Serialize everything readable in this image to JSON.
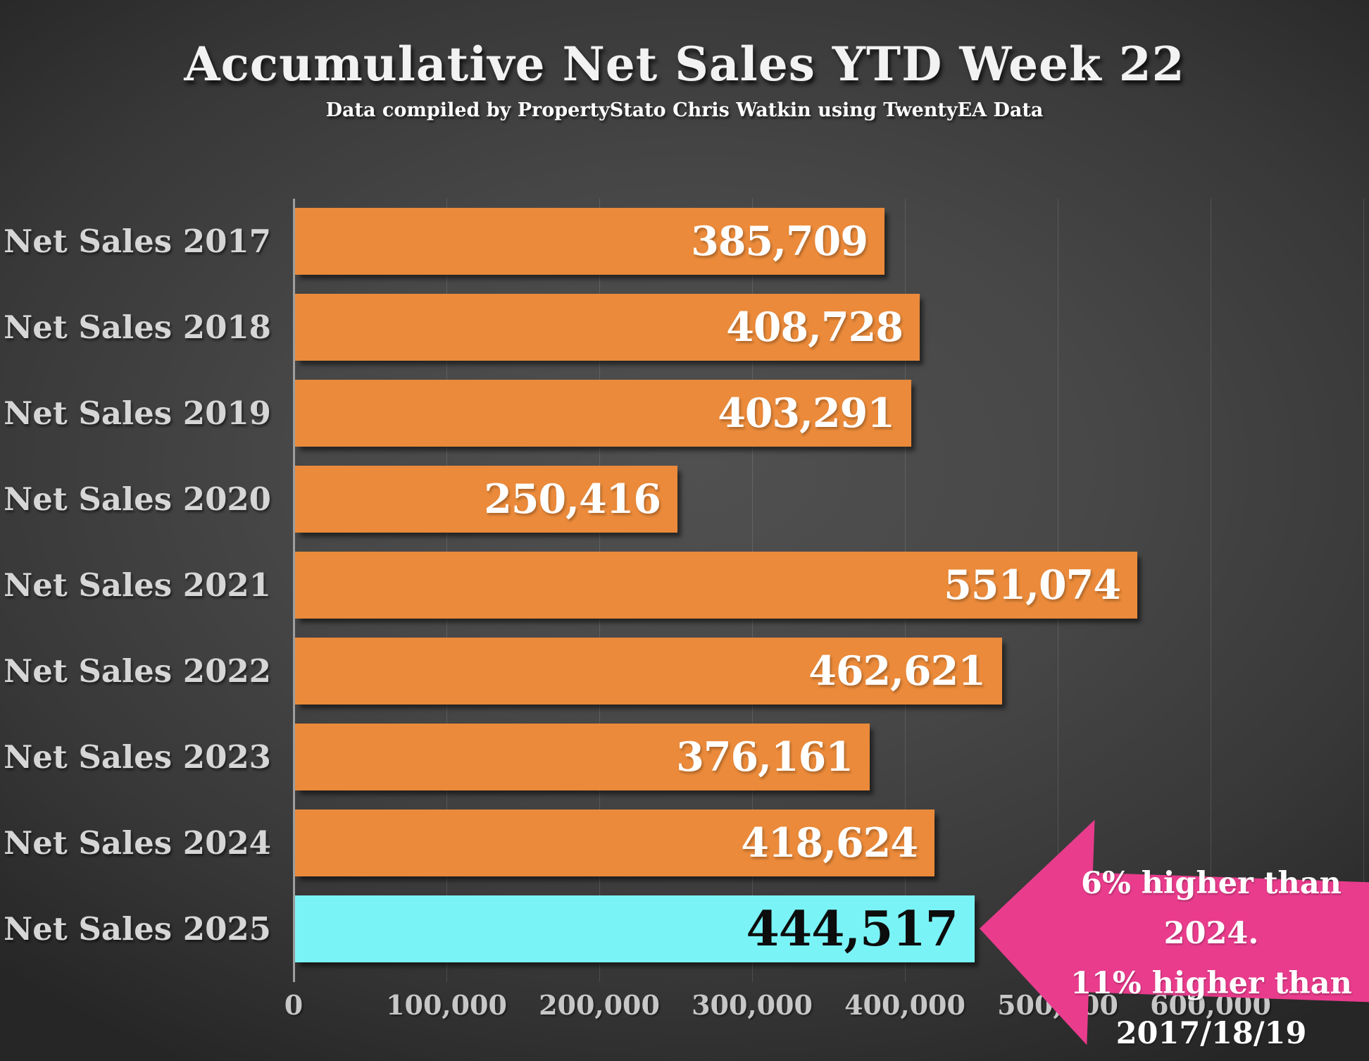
{
  "slide": {
    "title": "Accumulative Net Sales YTD Week 22",
    "subtitle": "Data compiled by PropertyStato Chris Watkin using TwentyEA Data"
  },
  "chart_data": {
    "type": "bar",
    "orientation": "horizontal",
    "title": "Accumulative Net Sales YTD Week 22",
    "categories": [
      "Net Sales 2017",
      "Net Sales 2018",
      "Net Sales 2019",
      "Net Sales 2020",
      "Net Sales 2021",
      "Net Sales 2022",
      "Net Sales 2023",
      "Net Sales 2024",
      "Net Sales 2025"
    ],
    "values": [
      385709,
      408728,
      403291,
      250416,
      551074,
      462621,
      376161,
      418624,
      444517
    ],
    "value_labels": [
      "385,709",
      "408,728",
      "403,291",
      "250,416",
      "551,074",
      "462,621",
      "376,161",
      "418,624",
      "444,517"
    ],
    "xlim": [
      0,
      700000
    ],
    "x_ticks": [
      {
        "label": "0",
        "value": 0
      },
      {
        "label": "100,000",
        "value": 100000
      },
      {
        "label": "200,000",
        "value": 200000
      },
      {
        "label": "300,000",
        "value": 300000
      },
      {
        "label": "400,000",
        "value": 400000
      },
      {
        "label": "500,000",
        "value": 500000
      },
      {
        "label": "600,000",
        "value": 600000
      }
    ],
    "grid": true,
    "legend": false,
    "bar_color": "#EA8A3A",
    "highlight_bar_color": "#7AF3F6",
    "highlight_index": 8,
    "value_label_color": "#FFFFFF",
    "highlight_value_label_color": "#0D0D0D"
  },
  "annotation": {
    "lines": [
      "6% higher than 2024.",
      "11% higher than",
      "2017/18/19"
    ],
    "color": "#E93C8D",
    "text_color": "#FFFFFF"
  }
}
